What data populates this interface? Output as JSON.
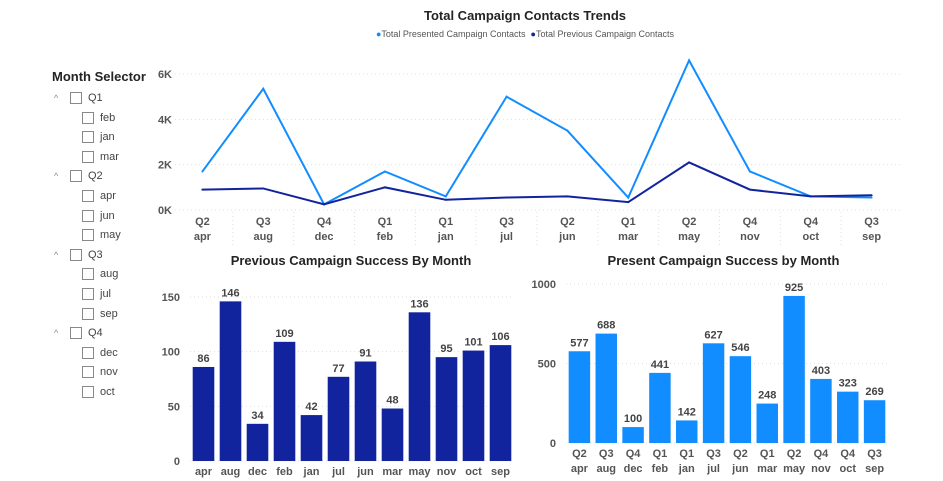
{
  "slicer": {
    "title": "Month Selector",
    "groups": [
      {
        "label": "Q1",
        "items": [
          "feb",
          "jan",
          "mar"
        ]
      },
      {
        "label": "Q2",
        "items": [
          "apr",
          "jun",
          "may"
        ]
      },
      {
        "label": "Q3",
        "items": [
          "aug",
          "jul",
          "sep"
        ]
      },
      {
        "label": "Q4",
        "items": [
          "dec",
          "nov",
          "oct"
        ]
      }
    ]
  },
  "chart_data": [
    {
      "type": "line",
      "title": "Total Campaign Contacts Trends",
      "legend_position": "top-center",
      "categories": [
        [
          "Q2",
          "apr"
        ],
        [
          "Q3",
          "aug"
        ],
        [
          "Q4",
          "dec"
        ],
        [
          "Q1",
          "feb"
        ],
        [
          "Q1",
          "jan"
        ],
        [
          "Q3",
          "jul"
        ],
        [
          "Q2",
          "jun"
        ],
        [
          "Q1",
          "mar"
        ],
        [
          "Q2",
          "may"
        ],
        [
          "Q4",
          "nov"
        ],
        [
          "Q4",
          "oct"
        ],
        [
          "Q3",
          "sep"
        ]
      ],
      "yticks": [
        "0K",
        "2K",
        "4K",
        "6K"
      ],
      "ylim": [
        0,
        6500
      ],
      "grid": true,
      "series": [
        {
          "name": "Total Presented Campaign Contacts",
          "color": "#118DFF",
          "values": [
            1700,
            5350,
            250,
            1700,
            600,
            5000,
            3500,
            550,
            6600,
            1700,
            600,
            550
          ]
        },
        {
          "name": "Total Previous Campaign Contacts",
          "color": "#12239E",
          "values": [
            900,
            950,
            250,
            1000,
            450,
            550,
            600,
            350,
            2100,
            900,
            600,
            650
          ]
        }
      ]
    },
    {
      "type": "bar",
      "title": "Previous Campaign Success By Month",
      "categories": [
        "apr",
        "aug",
        "dec",
        "feb",
        "jan",
        "jul",
        "jun",
        "mar",
        "may",
        "nov",
        "oct",
        "sep"
      ],
      "values": [
        86,
        146,
        34,
        109,
        42,
        77,
        91,
        48,
        136,
        95,
        101,
        106
      ],
      "yticks": [
        "0",
        "50",
        "100",
        "150"
      ],
      "ylim": [
        0,
        160
      ],
      "color": "#12239E",
      "grid": true
    },
    {
      "type": "bar",
      "title": "Present Campaign Success by Month",
      "categories": [
        [
          "Q2",
          "apr"
        ],
        [
          "Q3",
          "aug"
        ],
        [
          "Q4",
          "dec"
        ],
        [
          "Q1",
          "feb"
        ],
        [
          "Q1",
          "jan"
        ],
        [
          "Q3",
          "jul"
        ],
        [
          "Q2",
          "jun"
        ],
        [
          "Q1",
          "mar"
        ],
        [
          "Q2",
          "may"
        ],
        [
          "Q4",
          "nov"
        ],
        [
          "Q4",
          "oct"
        ],
        [
          "Q3",
          "sep"
        ]
      ],
      "values": [
        577,
        688,
        100,
        441,
        142,
        627,
        546,
        248,
        925,
        403,
        323,
        269
      ],
      "yticks": [
        "0",
        "500",
        "1000"
      ],
      "ylim": [
        0,
        1000
      ],
      "color": "#118DFF",
      "grid": true
    }
  ]
}
